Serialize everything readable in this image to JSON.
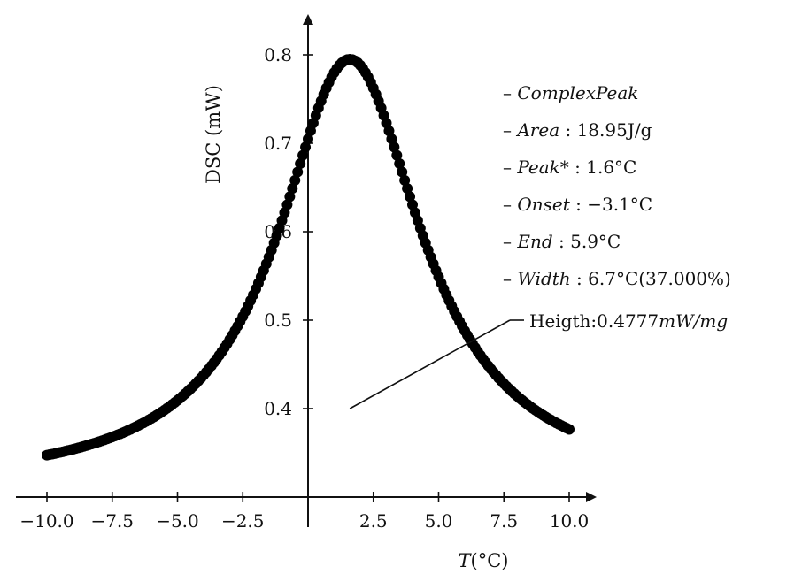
{
  "chart_data": {
    "type": "scatter",
    "title": "",
    "xlabel_var": "T",
    "xlabel_unit": "(°C)",
    "ylabel_text": "DSC",
    "ylabel_unit": "(mW)",
    "xlim": [
      -10.5,
      11.2
    ],
    "ylim": [
      0.31,
      0.85
    ],
    "xticks": [
      -10.0,
      -7.5,
      -5.0,
      -2.5,
      2.5,
      5.0,
      7.5,
      10.0
    ],
    "xtick_labels": [
      "−10.0",
      "−7.5",
      "−5.0",
      "−2.5",
      "2.5",
      "5.0",
      "7.5",
      "10.0"
    ],
    "yticks": [
      0.4,
      0.5,
      0.6,
      0.7,
      0.8
    ],
    "ytick_labels": [
      "0.4",
      "0.5",
      "0.6",
      "0.7",
      "0.8"
    ],
    "grid": false,
    "marker_color": "#000000",
    "peak": {
      "x": 1.6,
      "y": 0.795
    },
    "baseline": 0.31,
    "halfwidth": 3.35,
    "x_start": -10.0,
    "x_end": 10.0,
    "x_step": 0.1,
    "legend": {
      "placement": "right",
      "items": [
        {
          "name": "Complex Peak",
          "prefix": "– ",
          "italic": "ComplexPeak",
          "rest": ""
        },
        {
          "name": "Area",
          "prefix": "– ",
          "italic": "Area",
          "rest": " : 18.95J/g"
        },
        {
          "name": "Peak*",
          "prefix": "– ",
          "italic": "Peak*",
          "rest": " : 1.6°C"
        },
        {
          "name": "Onset",
          "prefix": "– ",
          "italic": "Onset",
          "rest": " : −3.1°C"
        },
        {
          "name": "End",
          "prefix": "– ",
          "italic": "End",
          "rest": " : 5.9°C"
        },
        {
          "name": "Width",
          "prefix": "– ",
          "italic": "Width",
          "rest": " : 6.7°C(37.000%)"
        }
      ]
    },
    "height_annotation": {
      "text_plain": "Heigth:0.4777",
      "text_italic": "mW/mg",
      "anchor": {
        "x": 1.6,
        "y": 0.4
      }
    }
  }
}
